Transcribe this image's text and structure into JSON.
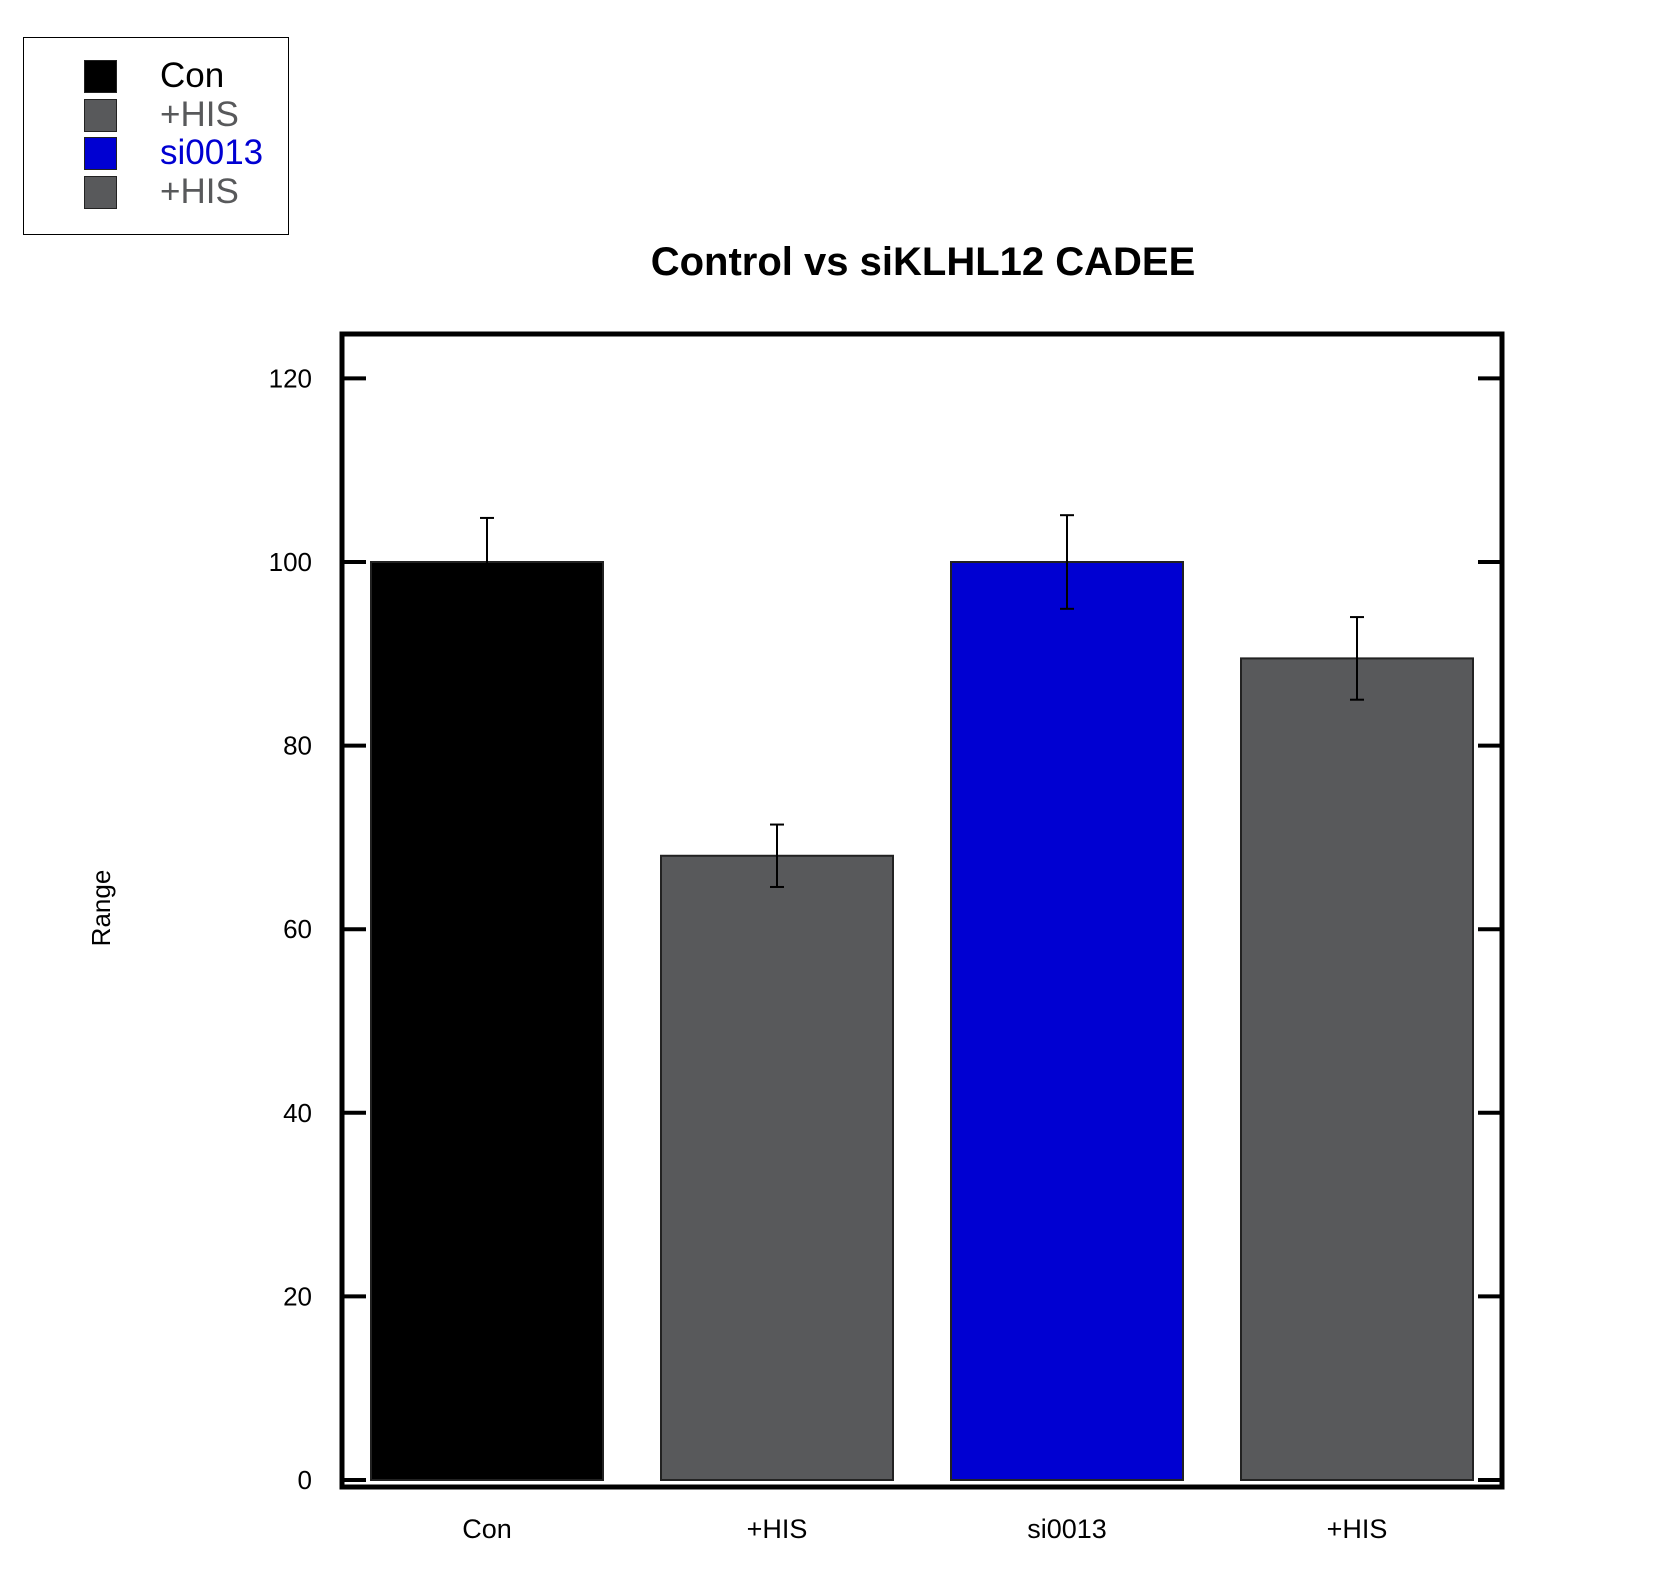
{
  "chart_data": {
    "type": "bar",
    "title": "Control vs siKLHL12 CADEE",
    "xlabel": "",
    "ylabel": "Range",
    "categories": [
      "Con",
      "+HIS",
      "si0013",
      "+HIS"
    ],
    "values": [
      100,
      68,
      100,
      89.5
    ],
    "error": [
      4.8,
      3.4,
      5.1,
      4.5
    ],
    "colors": [
      "#000000",
      "#58595b",
      "#0000d2",
      "#58595b"
    ],
    "ylim": [
      0,
      125
    ],
    "yticks": [
      0,
      20,
      40,
      60,
      80,
      100,
      120
    ],
    "grid": false,
    "legend": {
      "position": "top-left",
      "items": [
        {
          "label": "Con",
          "color": "#000000",
          "text_color": "#000000"
        },
        {
          "label": "+HIS",
          "color": "#58595b",
          "text_color": "#58595b"
        },
        {
          "label": "si0013",
          "color": "#0000d2",
          "text_color": "#0000d2"
        },
        {
          "label": "+HIS",
          "color": "#58595b",
          "text_color": "#58595b"
        }
      ]
    }
  }
}
